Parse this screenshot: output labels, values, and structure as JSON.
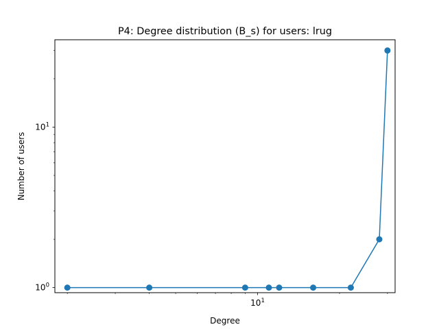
{
  "chart_data": {
    "type": "line",
    "title": "P4: Degree distribution (B_s) for users: lrug",
    "xlabel": "Degree",
    "ylabel": "Number of users",
    "xscale": "log",
    "yscale": "log",
    "xlim": [
      1.8,
      32
    ],
    "ylim": [
      0.93,
      35
    ],
    "grid": false,
    "legend": "none",
    "x_ticks": [
      {
        "value": 10,
        "base": "10",
        "exp": "1"
      }
    ],
    "y_ticks": [
      {
        "value": 1,
        "base": "10",
        "exp": "0"
      },
      {
        "value": 10,
        "base": "10",
        "exp": "1"
      }
    ],
    "series": [
      {
        "color": "#1f77b4",
        "x": [
          2,
          4,
          9,
          11,
          12,
          16,
          22,
          28,
          30
        ],
        "y": [
          1,
          1,
          1,
          1,
          1,
          1,
          1,
          2,
          30
        ]
      }
    ]
  }
}
